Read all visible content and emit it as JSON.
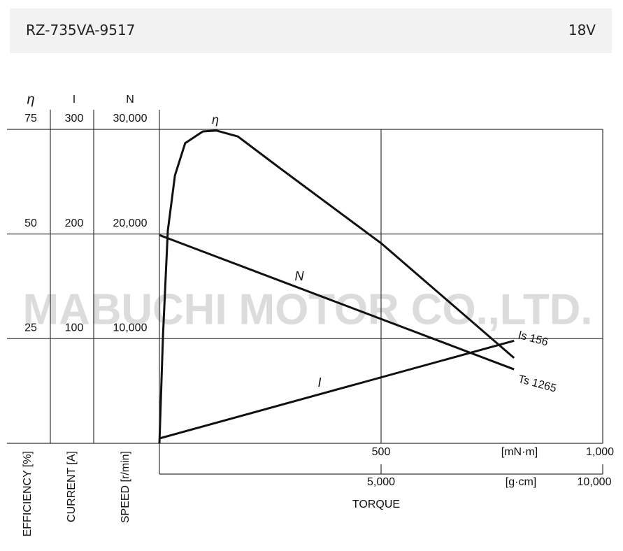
{
  "header": {
    "title": "RZ-735VA-9517",
    "voltage": "18V"
  },
  "chart_data": {
    "type": "line",
    "watermark": "MABUCHI MOTOR CO.,LTD.",
    "xlabel": "TORQUE",
    "xlim": [
      0,
      1000
    ],
    "xticks": [
      500,
      {
        "value": 1000,
        "label": "1,000"
      }
    ],
    "x_unit": "[mN·m]",
    "x2lim": [
      0,
      10000
    ],
    "x2ticks": [
      {
        "value": 5000,
        "label": "5,000"
      },
      {
        "value": 10000,
        "label": "10,000"
      }
    ],
    "x2_unit": "[g·cm]",
    "grid": true,
    "y_axes": [
      {
        "header": "η",
        "title": "EFFICIENCY [%]",
        "ylim": [
          0,
          75
        ],
        "yticks": [
          25,
          50,
          75
        ]
      },
      {
        "header": "I",
        "title": "CURRENT [A]",
        "ylim": [
          0,
          300
        ],
        "yticks": [
          100,
          200,
          300
        ]
      },
      {
        "header": "N",
        "title": "SPEED [r/min]",
        "ylim": [
          0,
          30000
        ],
        "yticks": [
          {
            "value": 10000,
            "label": "10,000"
          },
          {
            "value": 20000,
            "label": "20,000"
          },
          {
            "value": 30000,
            "label": "30,000"
          }
        ]
      }
    ],
    "series": [
      {
        "name": "η",
        "color": "#111111",
        "x": [
          0,
          8,
          19,
          35,
          58,
          98,
          129,
          177,
          271,
          500,
          800
        ],
        "values": [
          0,
          25.7,
          50.8,
          64,
          71.7,
          74.5,
          74.7,
          73.3,
          65.8,
          47.8,
          20.4
        ]
      },
      {
        "name": "I",
        "color": "#111111",
        "x": [
          0,
          800
        ],
        "values": [
          4.7,
          98
        ],
        "end_label": "Is 156"
      },
      {
        "name": "N",
        "color": "#111111",
        "x": [
          0,
          800
        ],
        "values": [
          19900,
          7070
        ],
        "end_label": "Ts 1265"
      }
    ]
  }
}
